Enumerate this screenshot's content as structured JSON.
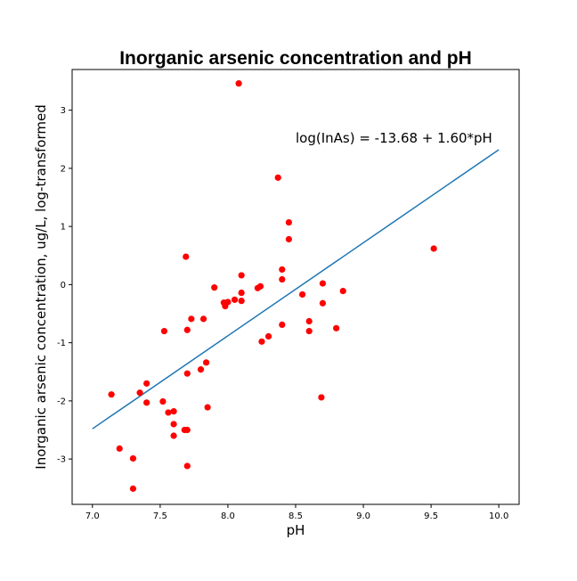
{
  "chart_data": {
    "type": "scatter",
    "title": "Inorganic arsenic concentration and pH",
    "xlabel": "pH",
    "ylabel": "Inorganic arsenic concentration, ug/L, log-transformed",
    "xlim": [
      6.85,
      10.15
    ],
    "ylim": [
      -3.78,
      3.7
    ],
    "xticks": [
      "7.0",
      "7.5",
      "8.0",
      "8.5",
      "9.0",
      "9.5",
      "10.0"
    ],
    "yticks": [
      "-3",
      "-2",
      "-1",
      "0",
      "1",
      "2",
      "3"
    ],
    "grid": false,
    "annotation": "log(InAs) = -13.68 + 1.60*pH",
    "colors": {
      "points": "#ff0000",
      "line": "#1f77b4"
    },
    "fit_line": {
      "intercept": -13.68,
      "slope": 1.6,
      "x_range": [
        7.0,
        10.0
      ]
    },
    "points": [
      {
        "x": 7.14,
        "y": -1.89
      },
      {
        "x": 7.2,
        "y": -2.82
      },
      {
        "x": 7.3,
        "y": -2.99
      },
      {
        "x": 7.3,
        "y": -3.51
      },
      {
        "x": 7.35,
        "y": -1.86
      },
      {
        "x": 7.4,
        "y": -1.7
      },
      {
        "x": 7.4,
        "y": -2.03
      },
      {
        "x": 7.52,
        "y": -2.01
      },
      {
        "x": 7.53,
        "y": -0.8
      },
      {
        "x": 7.56,
        "y": -2.2
      },
      {
        "x": 7.6,
        "y": -2.18
      },
      {
        "x": 7.6,
        "y": -2.4
      },
      {
        "x": 7.6,
        "y": -2.6
      },
      {
        "x": 7.68,
        "y": -2.5
      },
      {
        "x": 7.7,
        "y": -2.5
      },
      {
        "x": 7.7,
        "y": -3.12
      },
      {
        "x": 7.69,
        "y": 0.48
      },
      {
        "x": 7.7,
        "y": -0.78
      },
      {
        "x": 7.7,
        "y": -1.53
      },
      {
        "x": 7.73,
        "y": -0.59
      },
      {
        "x": 7.8,
        "y": -1.46
      },
      {
        "x": 7.82,
        "y": -0.59
      },
      {
        "x": 7.84,
        "y": -1.34
      },
      {
        "x": 7.85,
        "y": -2.11
      },
      {
        "x": 7.9,
        "y": -0.05
      },
      {
        "x": 7.97,
        "y": -0.31
      },
      {
        "x": 7.98,
        "y": -0.37
      },
      {
        "x": 8.0,
        "y": -0.3
      },
      {
        "x": 8.05,
        "y": -0.26
      },
      {
        "x": 8.08,
        "y": 3.46
      },
      {
        "x": 8.1,
        "y": 0.16
      },
      {
        "x": 8.1,
        "y": -0.14
      },
      {
        "x": 8.1,
        "y": -0.28
      },
      {
        "x": 8.22,
        "y": -0.06
      },
      {
        "x": 8.24,
        "y": -0.03
      },
      {
        "x": 8.25,
        "y": -0.98
      },
      {
        "x": 8.3,
        "y": -0.89
      },
      {
        "x": 8.37,
        "y": 1.84
      },
      {
        "x": 8.4,
        "y": 0.26
      },
      {
        "x": 8.4,
        "y": 0.09
      },
      {
        "x": 8.4,
        "y": -0.69
      },
      {
        "x": 8.45,
        "y": 1.07
      },
      {
        "x": 8.45,
        "y": 0.78
      },
      {
        "x": 8.55,
        "y": -0.17
      },
      {
        "x": 8.6,
        "y": -0.63
      },
      {
        "x": 8.6,
        "y": -0.8
      },
      {
        "x": 8.69,
        "y": -1.94
      },
      {
        "x": 8.7,
        "y": 0.02
      },
      {
        "x": 8.7,
        "y": -0.32
      },
      {
        "x": 8.8,
        "y": -0.75
      },
      {
        "x": 8.85,
        "y": -0.11
      },
      {
        "x": 9.52,
        "y": 0.62
      }
    ]
  }
}
